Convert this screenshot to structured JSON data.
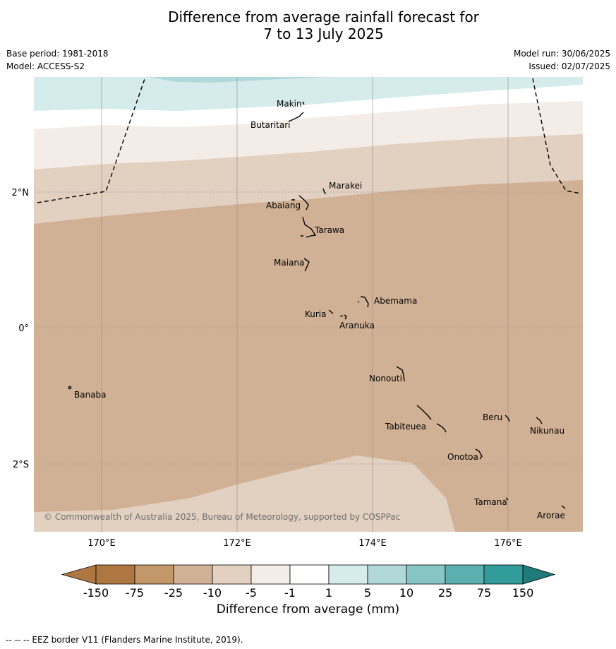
{
  "header": {
    "title_line1": "Difference from average rainfall forecast for",
    "title_line2": "7 to 13 July 2025",
    "base_period": "Base period: 1981-2018",
    "model": "Model: ACCESS-S2",
    "model_run": "Model run: 30/06/2025",
    "issued": "Issued: 02/07/2025"
  },
  "map": {
    "lon_ticks": [
      "170°E",
      "172°E",
      "174°E",
      "176°E"
    ],
    "lat_ticks": [
      "2°N",
      "0°",
      "2°S"
    ],
    "places": [
      {
        "name": "Makin"
      },
      {
        "name": "Butaritari"
      },
      {
        "name": "Marakei"
      },
      {
        "name": "Abaiang"
      },
      {
        "name": "Tarawa"
      },
      {
        "name": "Maiana"
      },
      {
        "name": "Abemama"
      },
      {
        "name": "Kuria"
      },
      {
        "name": "Aranuka"
      },
      {
        "name": "Banaba"
      },
      {
        "name": "Nonouti"
      },
      {
        "name": "Beru"
      },
      {
        "name": "Nikunau"
      },
      {
        "name": "Tabiteuea"
      },
      {
        "name": "Onotoa"
      },
      {
        "name": "Tamana"
      },
      {
        "name": "Arorae"
      }
    ],
    "copyright": "© Commonwealth of Australia 2025, Bureau of Meteorology, supported by COSPPac"
  },
  "legend": {
    "title": "Difference from average (mm)",
    "tick_labels": [
      "-150",
      "-75",
      "-25",
      "-10",
      "-5",
      "-1",
      "1",
      "5",
      "10",
      "25",
      "75",
      "150"
    ],
    "colors": [
      "#ae7640",
      "#c2976a",
      "#d1b195",
      "#e2d0c1",
      "#f4ede7",
      "#ffffff",
      "#d6ebeb",
      "#b2d9d9",
      "#88c6c5",
      "#5db0b0",
      "#329c9b",
      "#1f7a7a"
    ]
  },
  "footnote": "-- -- -- EEZ border V11 (Flanders Marine Institute, 2019)."
}
